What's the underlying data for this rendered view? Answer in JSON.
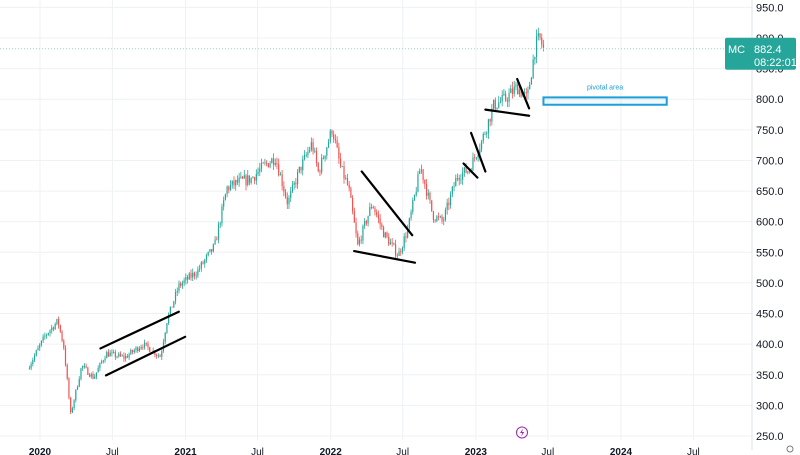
{
  "chart_data": {
    "type": "candlestick",
    "symbol": "MC",
    "last_price": 882.4,
    "last_price_label": "882.4",
    "countdown": "08:22:01",
    "y_axis": {
      "range": [
        250,
        955
      ],
      "ticks": [
        "250.0",
        "300.0",
        "350.0",
        "400.0",
        "450.0",
        "500.0",
        "550.0",
        "600.0",
        "650.0",
        "700.0",
        "750.0",
        "800.0",
        "850.0",
        "900.0",
        "950.0"
      ],
      "position": "right"
    },
    "x_axis": {
      "ticks": [
        {
          "label": "2020",
          "date": "2020-01-01"
        },
        {
          "label": "Jul",
          "date": "2020-07-01"
        },
        {
          "label": "2021",
          "date": "2021-01-01"
        },
        {
          "label": "Jul",
          "date": "2021-07-01"
        },
        {
          "label": "2022",
          "date": "2022-01-01"
        },
        {
          "label": "Jul",
          "date": "2022-07-01"
        },
        {
          "label": "2023",
          "date": "2023-01-01"
        },
        {
          "label": "Jul",
          "date": "2023-07-01"
        },
        {
          "label": "2024",
          "date": "2024-01-01"
        },
        {
          "label": "Jul",
          "date": "2024-07-01"
        }
      ]
    },
    "price_path": [
      [
        "2019-12-01",
        360
      ],
      [
        "2020-01-15",
        415
      ],
      [
        "2020-02-15",
        438
      ],
      [
        "2020-03-01",
        395
      ],
      [
        "2020-03-18",
        285
      ],
      [
        "2020-04-15",
        365
      ],
      [
        "2020-05-15",
        345
      ],
      [
        "2020-06-15",
        385
      ],
      [
        "2020-08-01",
        378
      ],
      [
        "2020-09-15",
        400
      ],
      [
        "2020-10-30",
        380
      ],
      [
        "2020-11-15",
        438
      ],
      [
        "2020-12-15",
        495
      ],
      [
        "2021-02-01",
        520
      ],
      [
        "2021-03-15",
        560
      ],
      [
        "2021-04-15",
        655
      ],
      [
        "2021-05-15",
        665
      ],
      [
        "2021-06-15",
        670
      ],
      [
        "2021-07-15",
        690
      ],
      [
        "2021-08-15",
        705
      ],
      [
        "2021-09-15",
        630
      ],
      [
        "2021-10-15",
        685
      ],
      [
        "2021-11-15",
        728
      ],
      [
        "2021-12-01",
        680
      ],
      [
        "2022-01-05",
        752
      ],
      [
        "2022-01-25",
        690
      ],
      [
        "2022-02-15",
        655
      ],
      [
        "2022-03-10",
        560
      ],
      [
        "2022-04-15",
        630
      ],
      [
        "2022-05-15",
        580
      ],
      [
        "2022-06-20",
        545
      ],
      [
        "2022-07-15",
        590
      ],
      [
        "2022-08-15",
        690
      ],
      [
        "2022-09-15",
        610
      ],
      [
        "2022-10-10",
        600
      ],
      [
        "2022-11-15",
        675
      ],
      [
        "2022-12-15",
        685
      ],
      [
        "2023-01-15",
        730
      ],
      [
        "2023-02-15",
        790
      ],
      [
        "2023-03-15",
        800
      ],
      [
        "2023-04-15",
        820
      ],
      [
        "2023-05-10",
        800
      ],
      [
        "2023-05-31",
        888
      ],
      [
        "2023-06-10",
        900
      ],
      [
        "2023-06-20",
        882
      ]
    ],
    "trendlines": [
      {
        "from": [
          "2020-06-01",
          393
        ],
        "to": [
          "2020-12-15",
          453
        ]
      },
      {
        "from": [
          "2020-06-15",
          349
        ],
        "to": [
          "2020-12-31",
          412
        ]
      },
      {
        "from": [
          "2022-03-20",
          682
        ],
        "to": [
          "2022-07-25",
          578
        ]
      },
      {
        "from": [
          "2022-03-01",
          552
        ],
        "to": [
          "2022-08-01",
          533
        ]
      },
      {
        "from": [
          "2022-12-01",
          695
        ],
        "to": [
          "2023-01-05",
          672
        ]
      },
      {
        "from": [
          "2022-12-20",
          745
        ],
        "to": [
          "2023-01-25",
          682
        ]
      },
      {
        "from": [
          "2023-01-25",
          783
        ],
        "to": [
          "2023-05-15",
          773
        ]
      },
      {
        "from": [
          "2023-04-15",
          833
        ],
        "to": [
          "2023-05-15",
          785
        ]
      }
    ],
    "annotations": [
      {
        "text": "pivotal area",
        "zone": {
          "from_date": "2023-06-20",
          "to_date": "2024-04-25",
          "from": 791,
          "to": 803
        }
      }
    ],
    "grid": true,
    "legend": "none"
  },
  "colors": {
    "up": "#26a69a",
    "down": "#ef5350",
    "trendline": "#000000",
    "zone": "#1e9fd6",
    "price_tag": "#26a69a",
    "axis_text": "#131722",
    "grid": "#eef1f6",
    "price_line": "#9ed2cb",
    "event_marker": "#9c27b0"
  },
  "icons": {
    "event_marker": "lightning-icon",
    "settings": "gear-icon"
  }
}
